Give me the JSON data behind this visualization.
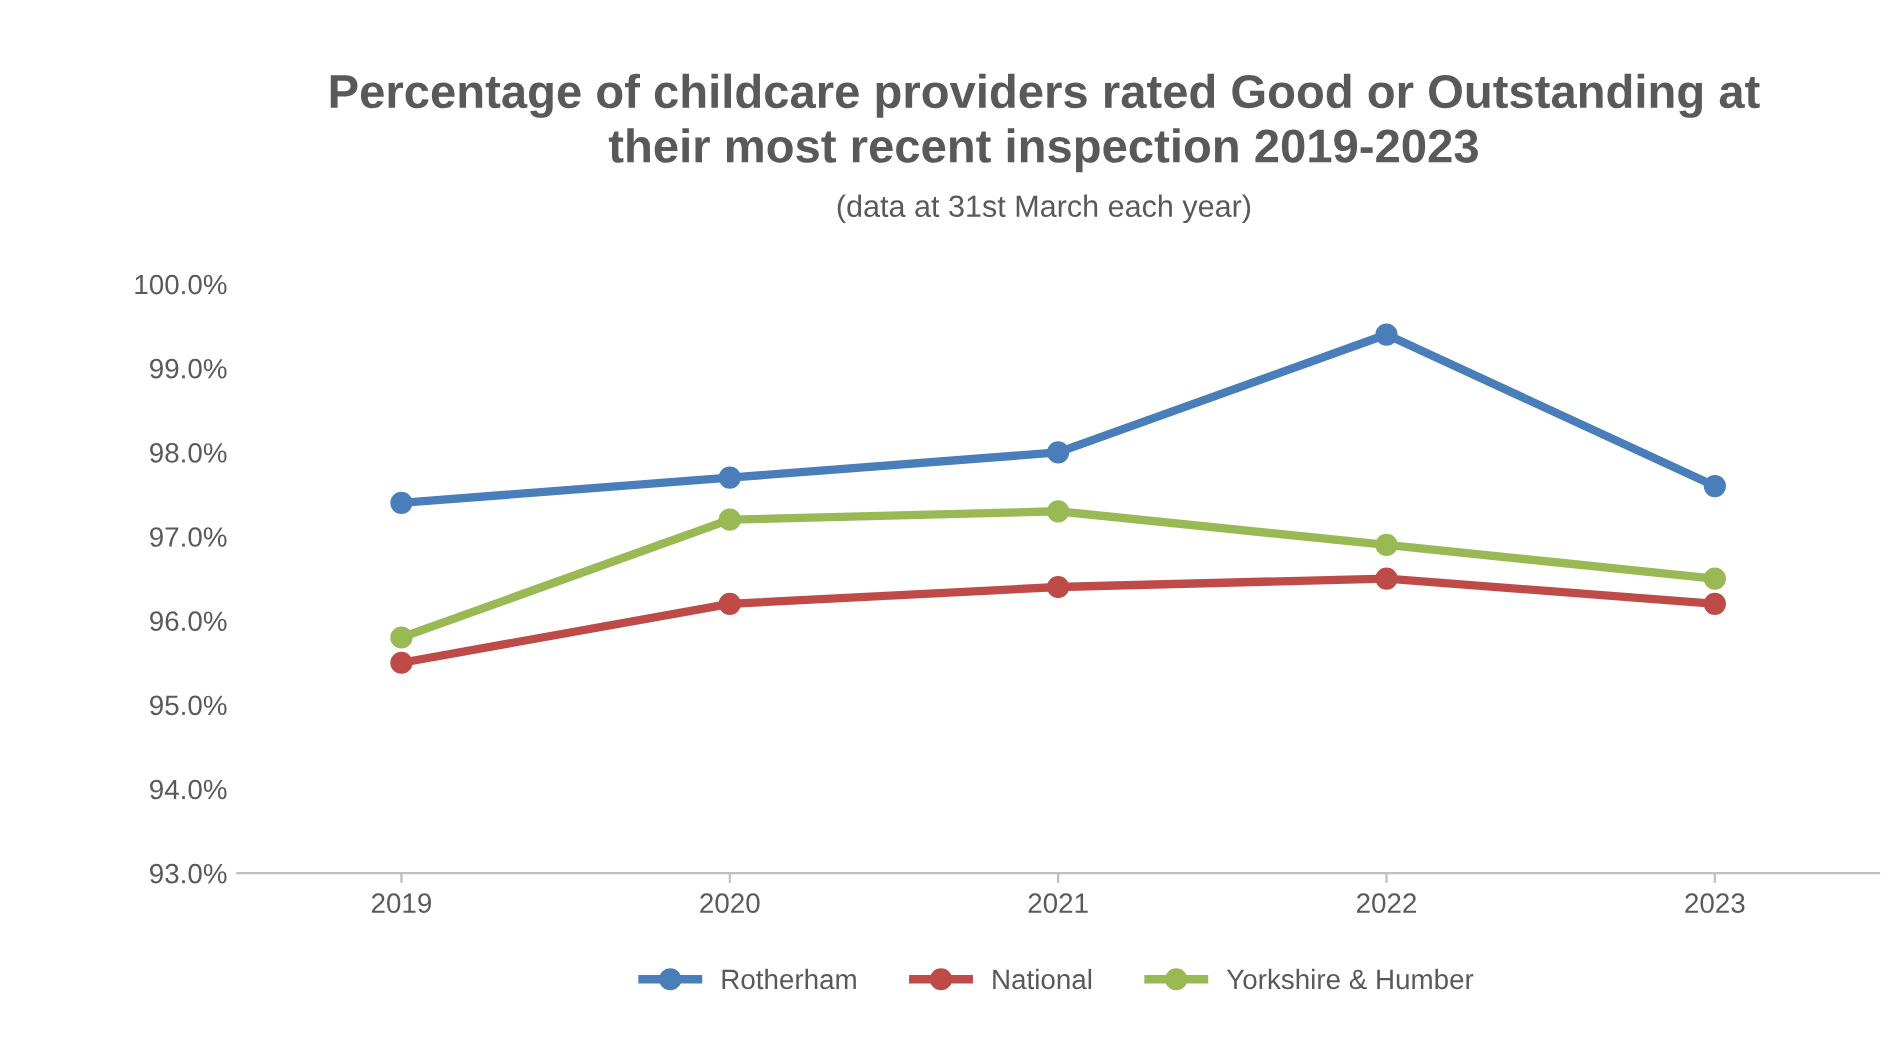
{
  "chart_data": {
    "type": "line",
    "title": "Percentage of childcare providers rated Good or Outstanding at\ntheir most recent inspection 2019-2023",
    "subtitle": "(data at 31st March each year)",
    "categories": [
      "2019",
      "2020",
      "2021",
      "2022",
      "2023"
    ],
    "series": [
      {
        "name": "Rotherham",
        "color": "#4a7ebb",
        "values": [
          97.4,
          97.7,
          98.0,
          99.4,
          97.6
        ]
      },
      {
        "name": "National",
        "color": "#be4b48",
        "values": [
          95.5,
          96.2,
          96.4,
          96.5,
          96.2
        ]
      },
      {
        "name": "Yorkshire & Humber",
        "color": "#98b954",
        "values": [
          95.8,
          97.2,
          97.3,
          96.9,
          96.5
        ]
      }
    ],
    "ylim": [
      93,
      100
    ],
    "yticks": [
      {
        "value": 93,
        "label": "93.0%"
      },
      {
        "value": 94,
        "label": "94.0%"
      },
      {
        "value": 95,
        "label": "95.0%"
      },
      {
        "value": 96,
        "label": "96.0%"
      },
      {
        "value": 97,
        "label": "97.0%"
      },
      {
        "value": 98,
        "label": "98.0%"
      },
      {
        "value": 99,
        "label": "99.0%"
      },
      {
        "value": 100,
        "label": "100.0%"
      }
    ],
    "grid": false,
    "legend": "bottom",
    "marker": "circle",
    "line_style": "solid"
  }
}
